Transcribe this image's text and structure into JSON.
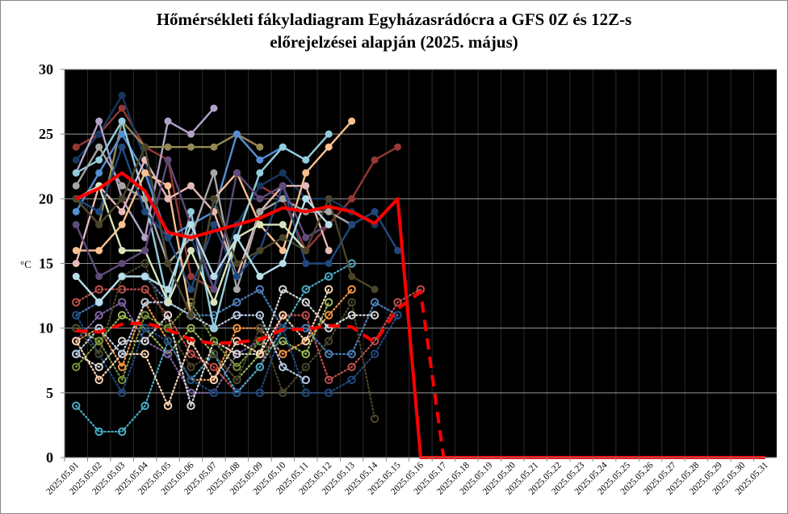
{
  "chart_data": {
    "type": "line",
    "title_line1": "Hőmérsékleti fákyladiagram Egyházasrádócra a GFS 0Z és 12Z-s",
    "title_line2": "előrejelzései alapján (2025. május)",
    "ylabel": "°C",
    "xlabel": "",
    "ylim": [
      0,
      30
    ],
    "yticks": [
      "0",
      "5",
      "10",
      "15",
      "20",
      "25",
      "30"
    ],
    "grid": true,
    "categories": [
      "2025.05.01",
      "2025.05.02",
      "2025.05.03",
      "2025.05.04",
      "2025.05.05",
      "2025.05.06",
      "2025.05.07",
      "2025.05.08",
      "2025.05.09",
      "2025.05.10",
      "2025.05.11",
      "2025.05.12",
      "2025.05.13",
      "2025.05.14",
      "2025.05.15",
      "2025.05.16",
      "2025.05.17",
      "2025.05.18",
      "2025.05.19",
      "2025.05.20",
      "2025.05.21",
      "2025.05.22",
      "2025.05.23",
      "2025.05.24",
      "2025.05.25",
      "2025.05.26",
      "2025.05.27",
      "2025.05.28",
      "2025.05.29",
      "2025.05.30",
      "2025.05.31"
    ],
    "mean_max": {
      "name": "mean max",
      "color": "#FF0000",
      "values": [
        20,
        20.8,
        22,
        20.6,
        17.4,
        17,
        17.5,
        18,
        18.5,
        19.3,
        19,
        19.4,
        19,
        18.1,
        20,
        0,
        0,
        0,
        0,
        0,
        0,
        0,
        0,
        0,
        0,
        0,
        0,
        0,
        0,
        0,
        0
      ]
    },
    "mean_min": {
      "name": "mean min",
      "color": "#FF0000",
      "values": [
        9.8,
        9.7,
        10.3,
        10.4,
        9.9,
        9.1,
        8.8,
        8.9,
        9.1,
        9.9,
        9.9,
        10.2,
        10.1,
        8.9,
        11.5,
        12.8,
        0,
        0,
        0,
        0,
        0,
        0,
        0,
        0,
        0,
        0,
        0,
        0,
        0,
        0,
        0
      ]
    },
    "max_members": [
      {
        "color": "#953735",
        "values": [
          24,
          25,
          27,
          24,
          23,
          14,
          13,
          18,
          21,
          20,
          16,
          18,
          20,
          23,
          24
        ]
      },
      {
        "color": "#17375E",
        "values": [
          23,
          25,
          28,
          23,
          15,
          17,
          13,
          18,
          21,
          22,
          20,
          20,
          19,
          18,
          null
        ]
      },
      {
        "color": "#B3A2C7",
        "values": [
          22,
          26,
          20,
          17,
          26,
          25,
          27,
          null,
          null,
          null,
          null,
          null,
          null,
          null,
          null
        ]
      },
      {
        "color": "#938953",
        "values": [
          20,
          18,
          26,
          24,
          24,
          24,
          24,
          25,
          24,
          null,
          null,
          null,
          null,
          null,
          null
        ]
      },
      {
        "color": "#558ED5",
        "values": [
          19,
          22,
          25,
          22,
          17,
          18,
          19,
          25,
          23,
          24,
          23,
          null,
          null,
          null,
          null
        ]
      },
      {
        "color": "#93CDDD",
        "values": [
          22,
          23,
          26,
          20,
          12,
          19,
          10,
          17,
          22,
          24,
          23,
          25,
          null,
          null,
          null
        ]
      },
      {
        "color": "#FAC090",
        "values": [
          16,
          16,
          18,
          22,
          21,
          11,
          20,
          22,
          18,
          16,
          22,
          24,
          26,
          null,
          null
        ]
      },
      {
        "color": "#E6B9B8",
        "values": [
          15,
          21,
          19,
          23,
          20,
          21,
          19,
          14,
          19,
          21,
          21,
          16,
          null,
          null,
          null
        ]
      },
      {
        "color": "#A6A6A6",
        "values": [
          21,
          24,
          21,
          20,
          15,
          17,
          22,
          13,
          19,
          20,
          19,
          19,
          18,
          null,
          null
        ]
      },
      {
        "color": "#1F497D",
        "values": [
          20,
          19,
          24,
          19,
          17,
          13,
          18,
          14,
          16,
          21,
          15,
          15,
          18,
          19,
          16
        ]
      },
      {
        "color": "#D7E4BC",
        "values": [
          20,
          21,
          16,
          16,
          12,
          16,
          12,
          17,
          18,
          18,
          16,
          null,
          null,
          null,
          null
        ]
      },
      {
        "color": "#604A7B",
        "values": [
          18,
          14,
          15,
          16,
          23,
          18,
          13,
          22,
          20,
          21,
          17,
          18,
          null,
          null,
          null
        ]
      },
      {
        "color": "#4A452A",
        "values": [
          20,
          18,
          20,
          24,
          15,
          11,
          20,
          15,
          16,
          17,
          16,
          20,
          14,
          13,
          null
        ]
      },
      {
        "color": "#B7DEE8",
        "values": [
          14,
          12,
          14,
          14,
          13,
          18,
          14,
          17,
          14,
          15,
          20,
          18,
          null,
          null,
          null
        ]
      }
    ],
    "min_members": [
      {
        "color": "#C0504D",
        "values": [
          12,
          13,
          13,
          13,
          11,
          8,
          7,
          5,
          7,
          11,
          11,
          6,
          7,
          9,
          12,
          13
        ]
      },
      {
        "color": "#4F81BD",
        "values": [
          11,
          12,
          14,
          14,
          12,
          11,
          11,
          12,
          13,
          10,
          10,
          8,
          8,
          12,
          11
        ]
      },
      {
        "color": "#9BBB59",
        "values": [
          10,
          9,
          11,
          10,
          8,
          10,
          8,
          6,
          8,
          9,
          8,
          12,
          null,
          null,
          null
        ]
      },
      {
        "color": "#8064A2",
        "values": [
          9,
          11,
          12,
          9,
          8,
          5,
          5,
          8,
          9,
          null,
          null,
          null,
          null,
          null,
          null
        ]
      },
      {
        "color": "#4BACC6",
        "values": [
          4,
          2,
          2,
          4,
          9,
          6,
          8,
          5,
          7,
          10,
          13,
          14,
          15,
          null,
          null
        ]
      },
      {
        "color": "#F79646",
        "values": [
          9,
          10,
          7,
          12,
          9,
          6,
          6,
          10,
          10,
          8,
          9,
          11,
          13,
          null,
          null
        ]
      },
      {
        "color": "#1F497D",
        "values": [
          11,
          8,
          5,
          10,
          9,
          6,
          5,
          5,
          5,
          10,
          5,
          5,
          6,
          8,
          11
        ]
      },
      {
        "color": "#4A452A",
        "values": [
          10,
          8,
          14,
          15,
          10,
          7,
          8,
          6,
          10,
          5,
          7,
          9,
          12,
          3,
          null
        ]
      },
      {
        "color": "#D9D9D9",
        "values": [
          8,
          7,
          9,
          9,
          11,
          4,
          9,
          8,
          8,
          13,
          12,
          10,
          11,
          11,
          null
        ]
      },
      {
        "color": "#77933C",
        "values": [
          7,
          9,
          6,
          11,
          10,
          12,
          9,
          7,
          9,
          null,
          null,
          null,
          null,
          null,
          null
        ]
      },
      {
        "color": "#FCD5B4",
        "values": [
          9,
          6,
          8,
          8,
          4,
          9,
          6,
          9,
          8,
          11,
          9,
          13,
          null,
          null,
          null
        ]
      },
      {
        "color": "#B9CDE5",
        "values": [
          8,
          10,
          8,
          12,
          12,
          11,
          10,
          11,
          11,
          7,
          6,
          null,
          null,
          null,
          null
        ]
      }
    ]
  }
}
